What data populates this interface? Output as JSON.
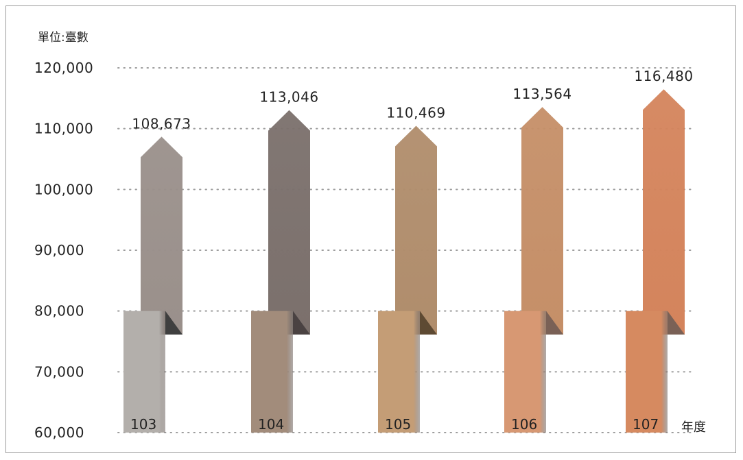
{
  "chart_data": {
    "type": "bar",
    "title": "",
    "unit_label": "單位:臺數",
    "xlabel": "年度",
    "ylabel": "",
    "ylim": [
      60000,
      120000
    ],
    "yticks": [
      "60,000",
      "70,000",
      "80,000",
      "90,000",
      "100,000",
      "110,000",
      "120,000"
    ],
    "ytick_values": [
      60000,
      70000,
      80000,
      90000,
      100000,
      110000,
      120000
    ],
    "grid": true,
    "categories": [
      "103",
      "104",
      "105",
      "106",
      "107"
    ],
    "values": [
      108673,
      113046,
      110469,
      113564,
      116480
    ],
    "value_labels": [
      "108,673",
      "113,046",
      "110,469",
      "113,564",
      "116,480"
    ],
    "colors": {
      "upper": [
        "#9a908b",
        "#7b706c",
        "#b08d6c",
        "#c58f68",
        "#d4845c"
      ],
      "lower": [
        "#b3afab",
        "#a28c7b",
        "#c49d76",
        "#d79873",
        "#d68a60"
      ],
      "fold": [
        "#3f3f3f",
        "#4a4242",
        "#5e4a33",
        "#7a6156",
        "#7a6156"
      ]
    }
  }
}
